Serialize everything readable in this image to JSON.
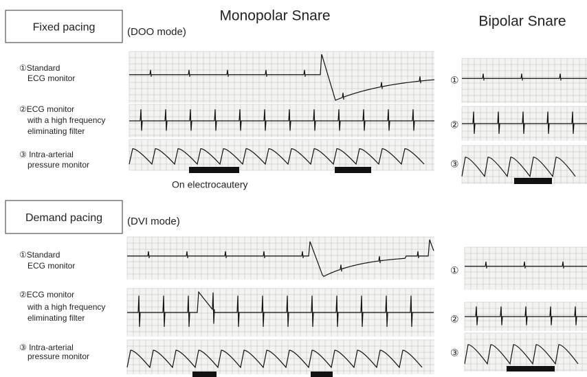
{
  "titles": {
    "monopolar": "Monopolar Snare",
    "bipolar": "Bipolar Snare"
  },
  "sections": [
    {
      "pacing": "Fixed pacing",
      "mode": "(DOO mode)",
      "rows": [
        {
          "label": [
            "①Standard",
            "ECG monitor"
          ],
          "marker": "①"
        },
        {
          "label": [
            "②ECG monitor",
            "with a high frequency",
            "eliminating filter"
          ],
          "marker": "②"
        },
        {
          "label": [
            "③ Intra-arterial",
            "pressure monitor"
          ],
          "marker": "③"
        }
      ],
      "annotation": "On electrocautery"
    },
    {
      "pacing": "Demand pacing",
      "mode": "(DVI mode)",
      "rows": [
        {
          "label": [
            "①Standard",
            "ECG monitor"
          ],
          "marker": "①"
        },
        {
          "label": [
            "②ECG monitor",
            "with a high frequency",
            "eliminating filter"
          ],
          "marker": "②"
        },
        {
          "label": [
            "③ Intra-arterial",
            "pressure monitor"
          ],
          "marker": "③"
        }
      ]
    }
  ]
}
